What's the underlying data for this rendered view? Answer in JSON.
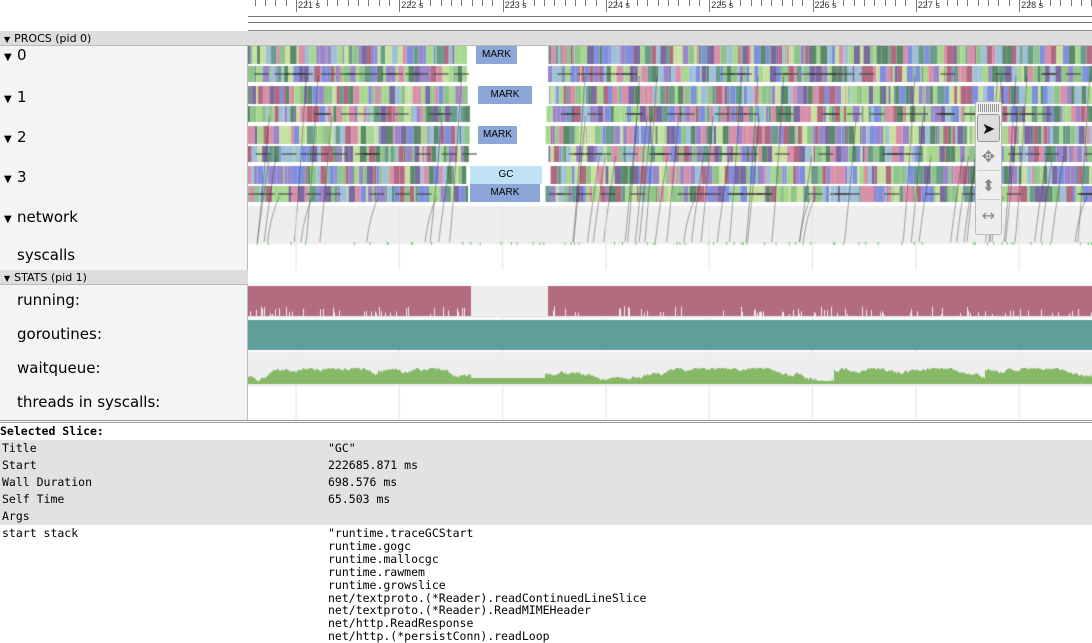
{
  "ruler": {
    "ticks": [
      "221 s",
      "222 s",
      "223 s",
      "224 s",
      "225 s",
      "226 s",
      "227 s",
      "228 s"
    ]
  },
  "procs_header": "PROCS (pid 0)",
  "procs": [
    {
      "label": "0",
      "mark": "MARK"
    },
    {
      "label": "1",
      "mark": "MARK"
    },
    {
      "label": "2",
      "mark": "MARK"
    },
    {
      "label": "3",
      "gc": "GC",
      "mark": "MARK"
    }
  ],
  "network_label": "network",
  "syscalls_label": "syscalls",
  "stats_header": "STATS (pid 1)",
  "stats": [
    "running:",
    "goroutines:",
    "waitqueue:",
    "threads in syscalls:"
  ],
  "tools": [
    "pointer-icon",
    "pan-icon",
    "zoom-icon",
    "timing-icon"
  ],
  "colors": {
    "running": "#b36b7f",
    "goroutines": "#5f9e9a",
    "waitqueue": "#86b866",
    "mark": "#8ca6d8",
    "gc": "#bfe2f4"
  },
  "details": {
    "heading": "Selected Slice:",
    "rows": [
      {
        "k": "Title",
        "v": "\"GC\""
      },
      {
        "k": "Start",
        "v": "222685.871 ms"
      },
      {
        "k": "Wall Duration",
        "v": "698.576 ms"
      },
      {
        "k": "Self Time",
        "v": "65.503 ms"
      },
      {
        "k": "Args",
        "v": ""
      }
    ],
    "stack_key": " start stack",
    "stack": [
      "\"runtime.traceGCStart",
      "runtime.gogc",
      "runtime.mallocgc",
      "runtime.rawmem",
      "runtime.growslice",
      "net/textproto.(*Reader).readContinuedLineSlice",
      "net/textproto.(*Reader).ReadMIMEHeader",
      "net/http.ReadResponse",
      "net/http.(*persistConn).readLoop"
    ]
  }
}
